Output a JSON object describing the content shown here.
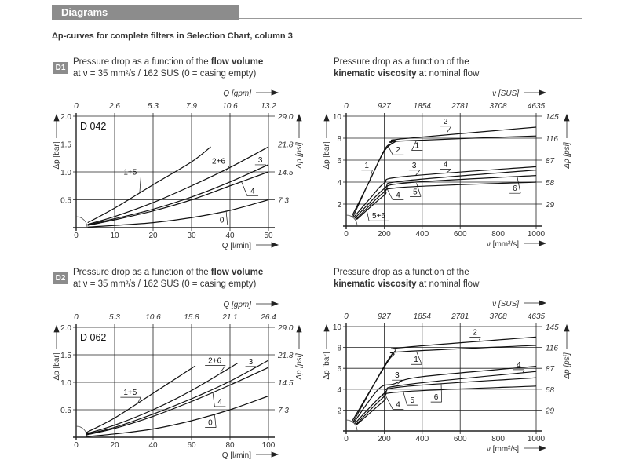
{
  "header": {
    "title": "Diagrams"
  },
  "subtitle": "Δp-curves for complete filters in Selection Chart, column 3",
  "sections": [
    {
      "badge": "D1",
      "flow_desc": {
        "pre": "Pressure drop as a function of the ",
        "bold": "flow volume",
        "line2": "at ν = 35 mm²/s / 162 SUS (0 = casing empty)"
      },
      "visc_desc": {
        "line1": "Pressure drop as a function of the",
        "bold": "kinematic viscosity",
        "post": " at nominal flow"
      }
    },
    {
      "badge": "D2",
      "flow_desc": {
        "pre": "Pressure drop as a function of the ",
        "bold": "flow volume",
        "line2": "at ν = 35 mm²/s / 162 SUS (0 = casing empty)"
      },
      "visc_desc": {
        "line1": "Pressure drop as a function of the",
        "bold": "kinematic viscosity",
        "post": " at nominal flow"
      }
    }
  ],
  "chart_data": [
    {
      "type": "line",
      "title": "D 042",
      "xlabel": "Q [l/min]",
      "x2label": "Q [gpm]",
      "ylabel": "Δp [bar]",
      "y2label": "Δp [psi]",
      "xlim": [
        0,
        50
      ],
      "ylim": [
        0,
        2.0
      ],
      "grid": true,
      "xticks": [
        0,
        10,
        20,
        30,
        40,
        50
      ],
      "x2ticks": [
        "0",
        "2.6",
        "5.3",
        "7.9",
        "10.6",
        "13.2"
      ],
      "yticks": [
        0.5,
        1.0,
        1.5,
        2.0
      ],
      "yticklabels": [
        "0.5",
        "1.0",
        "1.5",
        "2.0"
      ],
      "y2ticks": [
        "7.3",
        "14.5",
        "21.8",
        "29.0"
      ],
      "series": [
        {
          "name": "1+5",
          "points": [
            [
              3,
              0.09
            ],
            [
              10,
              0.35
            ],
            [
              20,
              0.77
            ],
            [
              30,
              1.18
            ],
            [
              35,
              1.45
            ]
          ]
        },
        {
          "name": "2+6",
          "points": [
            [
              3,
              0.06
            ],
            [
              10,
              0.2
            ],
            [
              20,
              0.45
            ],
            [
              30,
              0.75
            ],
            [
              40,
              1.08
            ],
            [
              50,
              1.45
            ]
          ]
        },
        {
          "name": "3",
          "points": [
            [
              3,
              0.05
            ],
            [
              10,
              0.16
            ],
            [
              20,
              0.33
            ],
            [
              30,
              0.55
            ],
            [
              40,
              0.82
            ],
            [
              50,
              1.13
            ]
          ]
        },
        {
          "name": "4",
          "points": [
            [
              3,
              0.04
            ],
            [
              10,
              0.14
            ],
            [
              20,
              0.3
            ],
            [
              30,
              0.5
            ],
            [
              40,
              0.75
            ],
            [
              50,
              1.0
            ]
          ]
        },
        {
          "name": "0",
          "points": [
            [
              3,
              0.01
            ],
            [
              10,
              0.04
            ],
            [
              20,
              0.09
            ],
            [
              30,
              0.18
            ],
            [
              40,
              0.31
            ],
            [
              50,
              0.5
            ]
          ]
        }
      ],
      "annotations": [
        {
          "text": "1+5",
          "x": 11.5,
          "y": 0.95,
          "to": [
            16.5,
            0.62
          ]
        },
        {
          "text": "2+6",
          "x": 34.5,
          "y": 1.15,
          "to": [
            39,
            1.02
          ]
        },
        {
          "text": "3",
          "x": 46.5,
          "y": 1.17,
          "to": [
            48.5,
            1.08
          ]
        },
        {
          "text": "4",
          "x": 44.5,
          "y": 0.61,
          "to": [
            43,
            0.82
          ]
        },
        {
          "text": "0",
          "x": 36.5,
          "y": 0.09,
          "to": [
            39,
            0.29
          ]
        }
      ]
    },
    {
      "type": "line",
      "xlabel": "ν [mm²/s]",
      "x2label": "ν [SUS]",
      "ylabel": "Δp [bar]",
      "y2label": "Δp [psi]",
      "xlim": [
        0,
        1000
      ],
      "ylim": [
        0,
        10
      ],
      "grid": true,
      "xticks": [
        0,
        200,
        400,
        600,
        800,
        1000
      ],
      "x2ticks": [
        "0",
        "927",
        "1854",
        "2781",
        "3708",
        "4635"
      ],
      "yticks": [
        2,
        4,
        6,
        8,
        10
      ],
      "yticklabels": [
        "2",
        "4",
        "6",
        "8",
        "10"
      ],
      "y2ticks": [
        "29",
        "58",
        "87",
        "116",
        "145"
      ],
      "series": [
        {
          "name": "1",
          "points": [
            [
              30,
              0.9
            ],
            [
              120,
              4
            ],
            [
              200,
              6.9
            ],
            [
              240,
              7.5
            ],
            [
              300,
              7.75
            ],
            [
              1000,
              8.2
            ]
          ]
        },
        {
          "name": "2",
          "points": [
            [
              35,
              0.8
            ],
            [
              120,
              4
            ],
            [
              200,
              6.8
            ],
            [
              260,
              7.7
            ],
            [
              300,
              7.95
            ],
            [
              1000,
              9
            ]
          ]
        },
        {
          "name": "3",
          "points": [
            [
              40,
              0.8
            ],
            [
              130,
              2.6
            ],
            [
              200,
              3.9
            ],
            [
              300,
              4.5
            ],
            [
              1000,
              5.4
            ]
          ]
        },
        {
          "name": "4",
          "points": [
            [
              45,
              0.7
            ],
            [
              200,
              3.4
            ],
            [
              300,
              4.1
            ],
            [
              1000,
              5.1
            ]
          ]
        },
        {
          "name": "5",
          "points": [
            [
              50,
              0.6
            ],
            [
              200,
              3.1
            ],
            [
              300,
              3.9
            ],
            [
              1000,
              4.6
            ]
          ]
        },
        {
          "name": "6",
          "points": [
            [
              55,
              0.6
            ],
            [
              200,
              2.8
            ],
            [
              280,
              3.5
            ],
            [
              1000,
              4.0
            ]
          ]
        }
      ],
      "annotations": [
        {
          "text": "2",
          "x": 495,
          "y": 9.3,
          "to": [
            530,
            8.5
          ]
        },
        {
          "text": "1",
          "x": 345,
          "y": 7.1,
          "to": [
            370,
            7.8
          ]
        },
        {
          "text": "2",
          "x": 245,
          "y": 6.7,
          "to": [
            220,
            7.3
          ]
        },
        {
          "text": "1",
          "x": 80,
          "y": 5.3,
          "to": [
            125,
            4.3
          ]
        },
        {
          "text": "3",
          "x": 330,
          "y": 5.3,
          "to": [
            365,
            4.6
          ]
        },
        {
          "text": "4",
          "x": 495,
          "y": 5.4,
          "to": [
            525,
            4.8
          ]
        },
        {
          "text": "4",
          "x": 245,
          "y": 2.6,
          "to": [
            215,
            3.4
          ]
        },
        {
          "text": "5",
          "x": 335,
          "y": 2.9,
          "to": [
            370,
            3.9
          ]
        },
        {
          "text": "6",
          "x": 860,
          "y": 3.2,
          "to": [
            900,
            4.5
          ]
        },
        {
          "text": "5+6",
          "x": 120,
          "y": 0.7,
          "to": [
            110,
            1.3
          ]
        }
      ]
    },
    {
      "type": "line",
      "title": "D 062",
      "xlabel": "Q [l/min]",
      "x2label": "Q [gpm]",
      "ylabel": "Δp [bar]",
      "y2label": "Δp [psi]",
      "xlim": [
        0,
        100
      ],
      "ylim": [
        0,
        2.0
      ],
      "grid": true,
      "xticks": [
        0,
        20,
        40,
        60,
        80,
        100
      ],
      "x2ticks": [
        "0",
        "5.3",
        "10.6",
        "15.8",
        "21.1",
        "26.4"
      ],
      "yticks": [
        0.5,
        1.0,
        1.5,
        2.0
      ],
      "yticklabels": [
        "0.5",
        "1.0",
        "1.5",
        "2.0"
      ],
      "y2ticks": [
        "7.3",
        "14.5",
        "21.8",
        "29.0"
      ],
      "series": [
        {
          "name": "1+5",
          "points": [
            [
              5,
              0.08
            ],
            [
              20,
              0.35
            ],
            [
              40,
              0.8
            ],
            [
              62,
              1.3
            ]
          ]
        },
        {
          "name": "2+6",
          "points": [
            [
              5,
              0.06
            ],
            [
              20,
              0.22
            ],
            [
              40,
              0.5
            ],
            [
              60,
              0.85
            ],
            [
              84,
              1.35
            ]
          ]
        },
        {
          "name": "3",
          "points": [
            [
              5,
              0.05
            ],
            [
              20,
              0.18
            ],
            [
              40,
              0.42
            ],
            [
              60,
              0.7
            ],
            [
              80,
              1.02
            ],
            [
              100,
              1.4
            ]
          ]
        },
        {
          "name": "4",
          "points": [
            [
              5,
              0.04
            ],
            [
              20,
              0.16
            ],
            [
              40,
              0.38
            ],
            [
              60,
              0.65
            ],
            [
              80,
              0.95
            ],
            [
              100,
              1.27
            ]
          ]
        },
        {
          "name": "0",
          "points": [
            [
              5,
              0.01
            ],
            [
              20,
              0.06
            ],
            [
              40,
              0.15
            ],
            [
              60,
              0.3
            ],
            [
              80,
              0.5
            ],
            [
              100,
              0.75
            ]
          ]
        }
      ],
      "annotations": [
        {
          "text": "1+5",
          "x": 23,
          "y": 0.77,
          "to": [
            32,
            0.62
          ]
        },
        {
          "text": "2+6",
          "x": 67,
          "y": 1.35,
          "to": [
            75,
            1.18
          ]
        },
        {
          "text": "3",
          "x": 88,
          "y": 1.33,
          "to": [
            92,
            1.25
          ]
        },
        {
          "text": "4",
          "x": 72,
          "y": 0.6,
          "to": [
            71,
            0.82
          ]
        },
        {
          "text": "0",
          "x": 67,
          "y": 0.22,
          "to": [
            72,
            0.41
          ]
        }
      ]
    },
    {
      "type": "line",
      "xlabel": "ν [mm²/s]",
      "x2label": "ν [SUS]",
      "ylabel": "Δp [bar]",
      "y2label": "Δp [psi]",
      "xlim": [
        0,
        1000
      ],
      "ylim": [
        0,
        10
      ],
      "grid": true,
      "xticks": [
        0,
        200,
        400,
        600,
        800,
        1000
      ],
      "x2ticks": [
        "0",
        "927",
        "1854",
        "2781",
        "3708",
        "4635"
      ],
      "yticks": [
        2,
        4,
        6,
        8,
        10
      ],
      "yticklabels": [
        "2",
        "4",
        "6",
        "8",
        "10"
      ],
      "y2ticks": [
        "29",
        "58",
        "87",
        "116",
        "145"
      ],
      "series": [
        {
          "name": "2",
          "points": [
            [
              35,
              0.8
            ],
            [
              200,
              6.2
            ],
            [
              260,
              7.7
            ],
            [
              300,
              8
            ],
            [
              1000,
              9
            ]
          ]
        },
        {
          "name": "1",
          "points": [
            [
              30,
              0.9
            ],
            [
              200,
              6.1
            ],
            [
              250,
              7.3
            ],
            [
              300,
              7.6
            ],
            [
              1000,
              8.2
            ]
          ]
        },
        {
          "name": "3",
          "points": [
            [
              40,
              0.8
            ],
            [
              170,
              4
            ],
            [
              250,
              4.5
            ],
            [
              400,
              5.2
            ],
            [
              1000,
              6.2
            ]
          ]
        },
        {
          "name": "4",
          "points": [
            [
              45,
              0.7
            ],
            [
              200,
              3.6
            ],
            [
              300,
              4.4
            ],
            [
              1000,
              5.7
            ]
          ]
        },
        {
          "name": "5",
          "points": [
            [
              50,
              0.6
            ],
            [
              200,
              3.3
            ],
            [
              280,
              4.2
            ],
            [
              1000,
              5.1
            ]
          ]
        },
        {
          "name": "6",
          "points": [
            [
              55,
              0.6
            ],
            [
              200,
              2.9
            ],
            [
              260,
              3.7
            ],
            [
              1000,
              4.3
            ]
          ]
        }
      ],
      "annotations": [
        {
          "text": "2",
          "x": 650,
          "y": 9.2,
          "to": [
            700,
            8.7
          ]
        },
        {
          "text": "1",
          "x": 340,
          "y": 6.6,
          "to": [
            370,
            7.6
          ]
        },
        {
          "text": "4",
          "x": 880,
          "y": 6.1,
          "to": [
            930,
            5.6
          ]
        },
        {
          "text": "3",
          "x": 240,
          "y": 5.1,
          "to": [
            270,
            4.5
          ]
        },
        {
          "text": "4",
          "x": 245,
          "y": 2.3,
          "to": [
            210,
            3.3
          ]
        },
        {
          "text": "5",
          "x": 320,
          "y": 2.7,
          "to": [
            300,
            3.8
          ]
        },
        {
          "text": "6",
          "x": 445,
          "y": 3.0,
          "to": [
            500,
            4.5
          ]
        }
      ]
    }
  ]
}
